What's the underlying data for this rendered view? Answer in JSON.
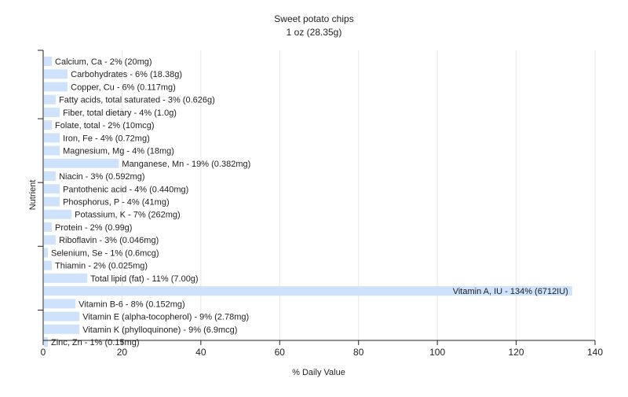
{
  "chart_data": {
    "type": "bar",
    "orientation": "horizontal",
    "title": "Sweet potato chips",
    "subtitle": "1 oz (28.35g)",
    "xlabel": "% Daily Value",
    "ylabel": "Nutrient",
    "xlim": [
      0,
      140
    ],
    "xticks": [
      0,
      20,
      40,
      60,
      80,
      100,
      120,
      140
    ],
    "grid": true,
    "bar_color": "#cfe2fb",
    "grid_color": "#e6e6e6",
    "categories": [
      "Calcium, Ca",
      "Carbohydrates",
      "Copper, Cu",
      "Fatty acids, total saturated",
      "Fiber, total dietary",
      "Folate, total",
      "Iron, Fe",
      "Magnesium, Mg",
      "Manganese, Mn",
      "Niacin",
      "Pantothenic acid",
      "Phosphorus, P",
      "Potassium, K",
      "Protein",
      "Riboflavin",
      "Selenium, Se",
      "Thiamin",
      "Total lipid (fat)",
      "Vitamin A, IU",
      "Vitamin B-6",
      "Vitamin E (alpha-tocopherol)",
      "Vitamin K (phylloquinone)",
      "Zinc, Zn"
    ],
    "values": [
      2,
      6,
      6,
      3,
      4,
      2,
      4,
      4,
      19,
      3,
      4,
      4,
      7,
      2,
      3,
      1,
      2,
      11,
      134,
      8,
      9,
      9,
      1
    ],
    "labels": [
      "Calcium, Ca - 2% (20mg)",
      "Carbohydrates - 6% (18.38g)",
      "Copper, Cu - 6% (0.117mg)",
      "Fatty acids, total saturated - 3% (0.626g)",
      "Fiber, total dietary - 4% (1.0g)",
      "Folate, total - 2% (10mcg)",
      "Iron, Fe - 4% (0.72mg)",
      "Magnesium, Mg - 4% (18mg)",
      "Manganese, Mn - 19% (0.382mg)",
      "Niacin - 3% (0.592mg)",
      "Pantothenic acid - 4% (0.440mg)",
      "Phosphorus, P - 4% (41mg)",
      "Potassium, K - 7% (262mg)",
      "Protein - 2% (0.99g)",
      "Riboflavin - 3% (0.046mg)",
      "Selenium, Se - 1% (0.6mcg)",
      "Thiamin - 2% (0.025mg)",
      "Total lipid (fat) - 11% (7.00g)",
      "Vitamin A, IU - 134% (6712IU)",
      "Vitamin B-6 - 8% (0.152mg)",
      "Vitamin E (alpha-tocopherol) - 9% (2.78mg)",
      "Vitamin K (phylloquinone) - 9% (6.9mcg)",
      "Zinc, Zn - 1% (0.15mg)"
    ]
  }
}
